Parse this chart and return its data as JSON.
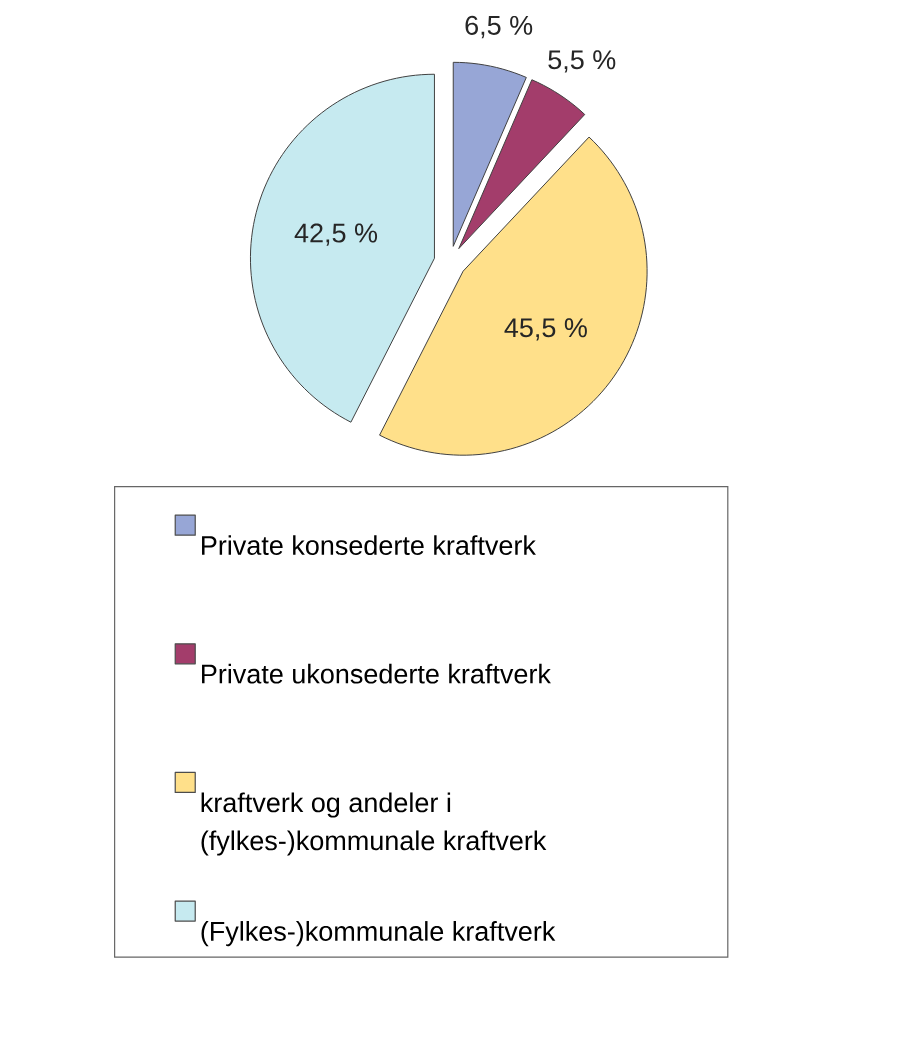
{
  "chart_data": {
    "type": "pie",
    "categories": [
      "Private konsederte kraftverk",
      "Private ukonsederte kraftverk",
      "kraftverk og andeler i (fylkes-)kommunale kraftverk",
      "(Fylkes-)kommunale kraftverk"
    ],
    "values": [
      6.5,
      5.5,
      45.5,
      42.5
    ],
    "colors": [
      "#97a6d6",
      "#a33d6b",
      "#ffe08a",
      "#c6eaf0"
    ],
    "value_labels": [
      "6,5 %",
      "5,5 %",
      "45,5 %",
      "42,5 %"
    ],
    "legend": "bottom"
  }
}
